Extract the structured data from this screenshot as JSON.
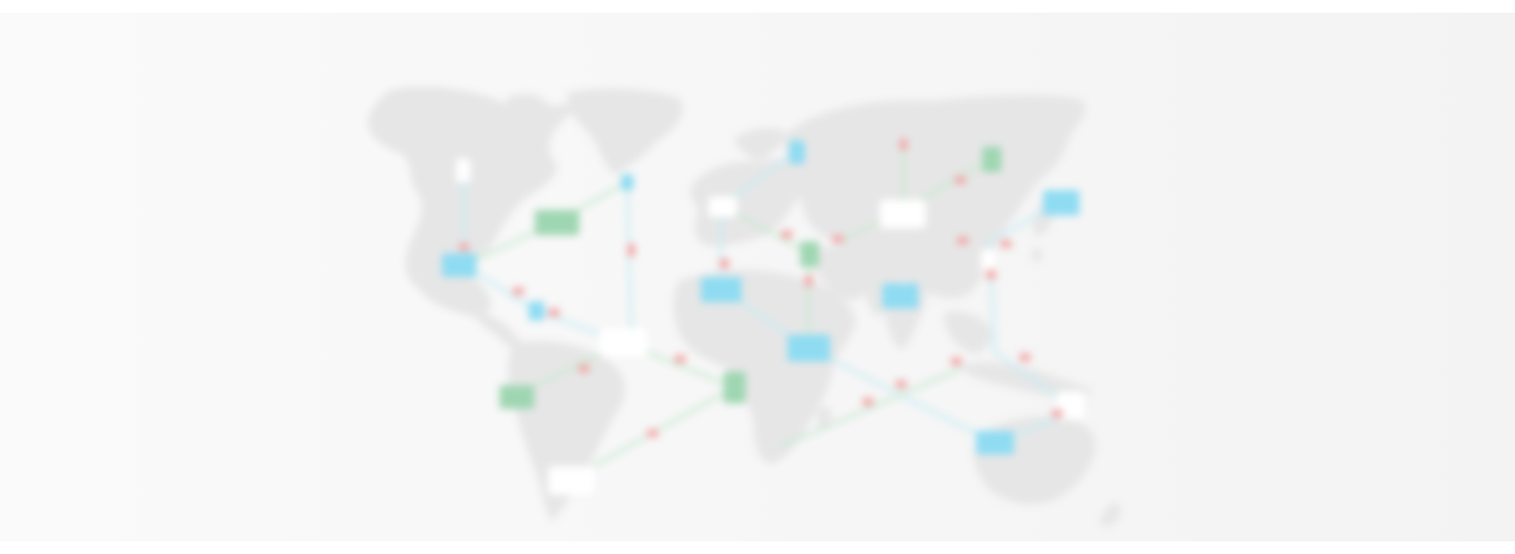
{
  "hero": {
    "image": "world-network-map",
    "colors": {
      "background": "#f6f6f6",
      "land": "#e6e6e6",
      "node_blue": "#8fdcf2",
      "node_green": "#9fd6b2",
      "node_white": "#ffffff",
      "link_blue": "#c9ecf4",
      "link_green": "#c9ead3",
      "packet_red": "#f2a8a8"
    }
  }
}
